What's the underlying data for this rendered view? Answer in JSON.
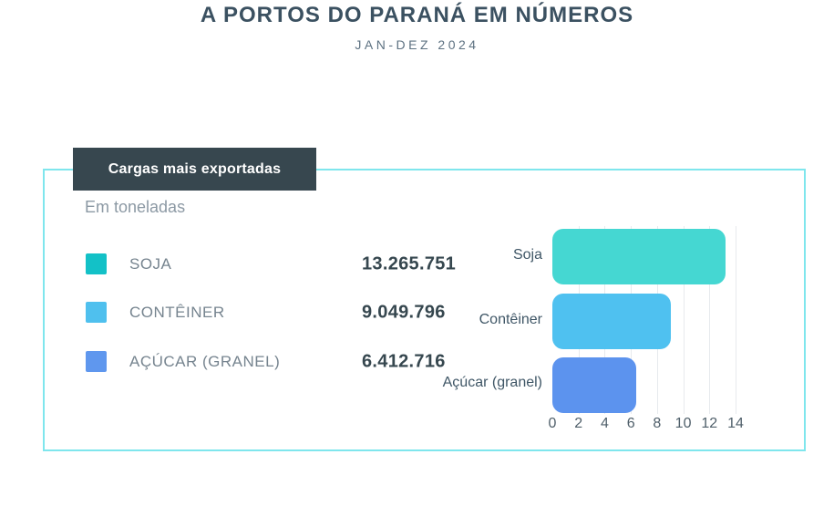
{
  "page": {
    "title": "A PORTOS DO PARANÁ EM NÚMEROS",
    "subtitle": "JAN-DEZ 2024"
  },
  "card": {
    "tag_label": "Cargas mais exportadas",
    "unit_label": "Em toneladas",
    "border_color": "#7fe6ed",
    "tag_bg_color": "#37474f",
    "legend": {
      "items": [
        {
          "label": "SOJA",
          "value": "13.265.751",
          "color": "#13c1c7"
        },
        {
          "label": "CONTÊINER",
          "value": "9.049.796",
          "color": "#4fc0ee"
        },
        {
          "label": "AÇÚCAR (GRANEL)",
          "value": "6.412.716",
          "color": "#5f97ee"
        }
      ]
    }
  },
  "chart_data": {
    "type": "bar",
    "orientation": "horizontal",
    "title": "Cargas mais exportadas",
    "unit_note": "Em toneladas",
    "categories": [
      "Soja",
      "Contêiner",
      "Açúcar (granel)"
    ],
    "values": [
      13.265751,
      9.049796,
      6.412716
    ],
    "value_labels": [
      "13.265.751",
      "9.049.796",
      "6.412.716"
    ],
    "bar_colors": [
      "#45d7d2",
      "#4fc1f0",
      "#5c93ee"
    ],
    "xticks": [
      0,
      2,
      4,
      6,
      8,
      10,
      12,
      14
    ],
    "xlim": [
      0,
      14
    ],
    "grid": "vertical",
    "legend_position": "left-panel",
    "xlabel": "",
    "ylabel": ""
  }
}
